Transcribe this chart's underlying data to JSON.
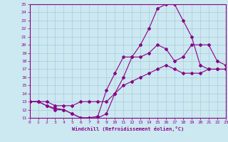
{
  "xlabel": "Windchill (Refroidissement éolien,°C)",
  "bg_color": "#cce8f0",
  "grid_color": "#aaccdd",
  "line_color": "#880088",
  "xmin": 0,
  "xmax": 23,
  "ymin": 11,
  "ymax": 25,
  "curve1_x": [
    0,
    1,
    2,
    3,
    4,
    5,
    6,
    7,
    8,
    9,
    10,
    11,
    12,
    13,
    14,
    15,
    16,
    17,
    18,
    19,
    20,
    21,
    22,
    23
  ],
  "curve1_y": [
    13,
    13,
    12.5,
    12.2,
    12,
    11.5,
    11,
    11,
    11,
    11.5,
    14,
    16,
    18.5,
    20,
    22,
    24.5,
    25,
    25,
    23,
    21,
    17.5,
    17,
    17,
    17
  ],
  "curve2_x": [
    0,
    1,
    2,
    3,
    4,
    5,
    6,
    7,
    8,
    9,
    10,
    11,
    12,
    13,
    14,
    15,
    16,
    17,
    18,
    19,
    20,
    21,
    22,
    23
  ],
  "curve2_y": [
    13,
    13,
    12.5,
    12,
    12,
    11.5,
    11,
    11,
    11.2,
    14.4,
    16.5,
    18.5,
    18.5,
    18.5,
    19,
    20,
    19.5,
    18,
    18.5,
    20,
    20,
    20,
    18,
    17.5
  ],
  "curve3_x": [
    0,
    1,
    2,
    3,
    4,
    5,
    6,
    7,
    8,
    9,
    10,
    11,
    12,
    13,
    14,
    15,
    16,
    17,
    18,
    19,
    20,
    21,
    22,
    23
  ],
  "curve3_y": [
    13,
    13,
    13,
    12.5,
    12.5,
    12.5,
    13,
    13,
    13,
    13,
    14,
    15,
    15.5,
    16,
    16.5,
    17,
    17.5,
    17,
    16.5,
    16.5,
    16.5,
    17,
    17,
    17
  ]
}
